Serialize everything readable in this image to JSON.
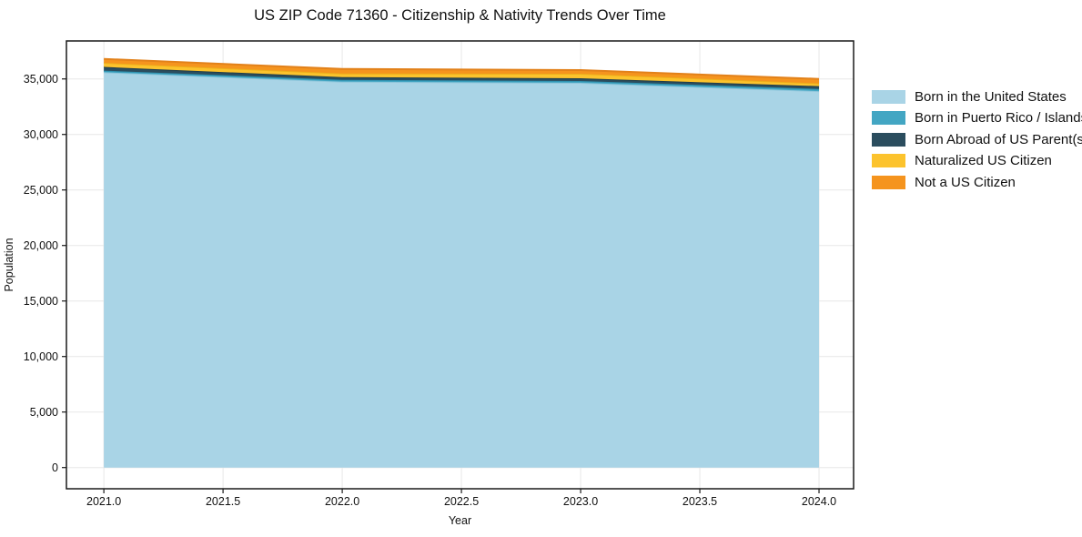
{
  "chart_data": {
    "type": "area",
    "stacked": true,
    "title": "US ZIP Code 71360 - Citizenship & Nativity Trends Over Time",
    "xlabel": "Year",
    "ylabel": "Population",
    "x": [
      2021,
      2022,
      2023,
      2024
    ],
    "series": [
      {
        "name": "Born in the United States",
        "values": [
          35600,
          34750,
          34650,
          33900
        ],
        "color": "#a9d4e6",
        "edge_color": "#8ec6db"
      },
      {
        "name": "Born in Puerto Rico / Islands",
        "values": [
          150,
          165,
          165,
          200
        ],
        "color": "#43a6c3",
        "edge_color": "#2e92b0"
      },
      {
        "name": "Born Abroad of US Parent(s)",
        "values": [
          330,
          245,
          245,
          250
        ],
        "color": "#2b4d5e",
        "edge_color": "#203d4b"
      },
      {
        "name": "Naturalized US Citizen",
        "values": [
          370,
          330,
          410,
          250
        ],
        "color": "#fcc32d",
        "edge_color": "#edb01b"
      },
      {
        "name": "Not a US Citizen",
        "values": [
          350,
          410,
          330,
          400
        ],
        "color": "#f5941e",
        "edge_color": "#e2811a"
      }
    ],
    "stack_totals": [
      36800,
      35900,
      35800,
      35000
    ],
    "x_tick_values": [
      2021,
      2021.5,
      2022,
      2022.5,
      2023,
      2023.5,
      2024
    ],
    "x_tick_labels": [
      "2021.0",
      "2021.5",
      "2022.0",
      "2022.5",
      "2023.0",
      "2023.5",
      "2024.0"
    ],
    "y_tick_values": [
      0,
      5000,
      10000,
      15000,
      20000,
      25000,
      30000,
      35000
    ],
    "y_tick_labels": [
      "0",
      "5,000",
      "10,000",
      "15,000",
      "20,000",
      "25,000",
      "30,000",
      "35,000"
    ],
    "xlim": [
      2020.843,
      2024.145
    ],
    "ylim": [
      -1910,
      38420
    ],
    "grid": true,
    "grid_color": "#e7e7e7",
    "axis_color": "#1a1a1a",
    "legend_position": "right"
  }
}
